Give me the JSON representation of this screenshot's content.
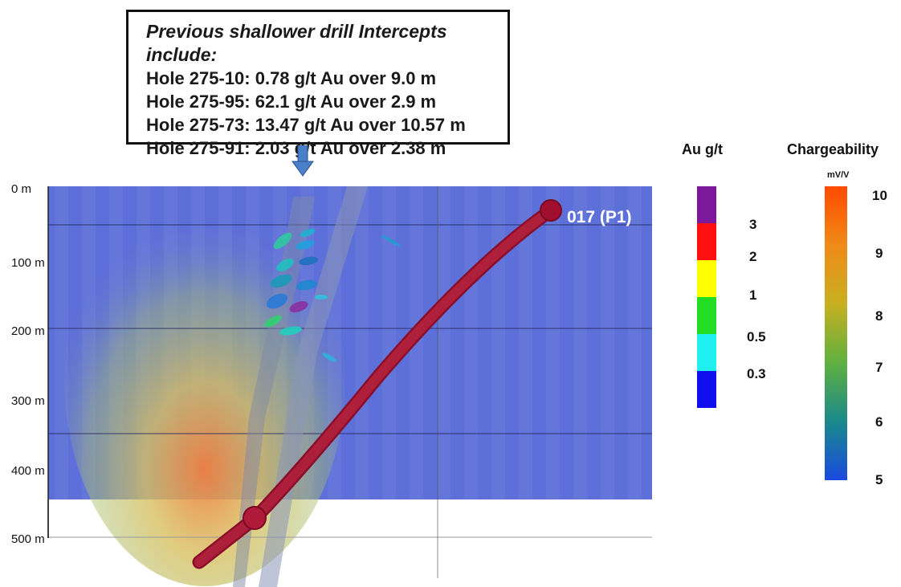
{
  "callout": {
    "title": "Previous shallower drill Intercepts include:",
    "lines": [
      "Hole 275-10: 0.78 g/t Au over 9.0 m",
      "Hole 275-95: 62.1 g/t Au over 2.9 m",
      "Hole 275-73: 13.47 g/t Au over 10.57 m",
      "Hole 275-91: 2.03 g/t Au over 2.38 m"
    ]
  },
  "section": {
    "depth_labels": [
      "0 m",
      "100 m",
      "200 m",
      "300 m",
      "400 m",
      "500 m"
    ],
    "hole_label": "017 (P1)"
  },
  "legend_au": {
    "title": "Au g/t",
    "labels": [
      "3",
      "2",
      "1",
      "0.5",
      "0.3"
    ],
    "colors": [
      "#7a1a9a",
      "#ff1010",
      "#ffff00",
      "#22dd22",
      "#22f0f0",
      "#1010ee"
    ]
  },
  "legend_charge": {
    "title": "Chargeability",
    "unit": "mV/V",
    "labels": [
      "10",
      "9",
      "8",
      "7",
      "6",
      "5"
    ],
    "gradient": [
      "#ff4a00",
      "#f08a18",
      "#c8b020",
      "#60b040",
      "#1a8a8a",
      "#1a4ae0"
    ]
  },
  "colors": {
    "background": "#5d6fd8",
    "drill_hole": "#b0153a",
    "faults": "#7f8aa8"
  }
}
